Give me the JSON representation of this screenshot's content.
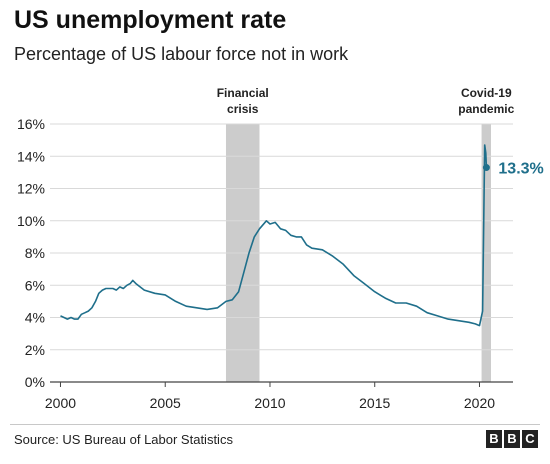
{
  "title": "US unemployment rate",
  "subtitle": "Percentage of US labour force not in work",
  "source": "Source: US Bureau of Labor Statistics",
  "logo": [
    "B",
    "B",
    "C"
  ],
  "chart_data": {
    "type": "line",
    "title": "US unemployment rate",
    "subtitle": "Percentage of US labour force not in work",
    "xlabel": "",
    "ylabel": "",
    "xlim": [
      1999.5,
      2021.6
    ],
    "ylim": [
      0,
      16
    ],
    "y_ticks": [
      0,
      2,
      4,
      6,
      8,
      10,
      12,
      14,
      16
    ],
    "y_tick_labels": [
      "0%",
      "2%",
      "4%",
      "6%",
      "8%",
      "10%",
      "12%",
      "14%",
      "16%"
    ],
    "x_ticks": [
      2000,
      2005,
      2010,
      2015,
      2020
    ],
    "x_tick_labels": [
      "2000",
      "2005",
      "2010",
      "2015",
      "2020"
    ],
    "grid": "horizontal",
    "line_color": "#1f6f8b",
    "band_color": "#cccccc",
    "shaded_periods": [
      {
        "label_lines": [
          "Financial",
          "crisis"
        ],
        "start": 2007.9,
        "end": 2009.5
      },
      {
        "label_lines": [
          "Covid-19",
          "pandemic"
        ],
        "start": 2020.1,
        "end": 2020.55
      }
    ],
    "series": [
      {
        "x": [
          2000.0,
          2000.17,
          2000.33,
          2000.5,
          2000.67,
          2000.83,
          2001.0,
          2001.17,
          2001.33,
          2001.5,
          2001.67,
          2001.83,
          2002.0,
          2002.17,
          2002.33,
          2002.5,
          2002.67,
          2002.83,
          2003.0,
          2003.17,
          2003.33,
          2003.45,
          2003.6,
          2003.8,
          2004.0,
          2004.5,
          2005.0,
          2005.5,
          2006.0,
          2006.5,
          2007.0,
          2007.5,
          2007.9,
          2008.2,
          2008.5,
          2008.75,
          2009.0,
          2009.25,
          2009.5,
          2009.83,
          2010.0,
          2010.25,
          2010.5,
          2010.75,
          2011.0,
          2011.25,
          2011.5,
          2011.75,
          2012.0,
          2012.5,
          2013.0,
          2013.5,
          2014.0,
          2014.5,
          2015.0,
          2015.5,
          2016.0,
          2016.5,
          2017.0,
          2017.5,
          2018.0,
          2018.5,
          2019.0,
          2019.5,
          2019.8,
          2020.0,
          2020.15,
          2020.25,
          2020.3,
          2020.33
        ],
        "y": [
          4.1,
          4.0,
          3.9,
          4.0,
          3.9,
          3.9,
          4.2,
          4.3,
          4.4,
          4.6,
          5.0,
          5.5,
          5.7,
          5.8,
          5.8,
          5.8,
          5.7,
          5.9,
          5.8,
          6.0,
          6.1,
          6.3,
          6.1,
          5.9,
          5.7,
          5.5,
          5.4,
          5.0,
          4.7,
          4.6,
          4.5,
          4.6,
          5.0,
          5.1,
          5.6,
          6.8,
          8.0,
          9.0,
          9.5,
          10.0,
          9.8,
          9.9,
          9.5,
          9.4,
          9.1,
          9.0,
          9.0,
          8.5,
          8.3,
          8.2,
          7.8,
          7.3,
          6.6,
          6.1,
          5.6,
          5.2,
          4.9,
          4.9,
          4.7,
          4.3,
          4.1,
          3.9,
          3.8,
          3.7,
          3.6,
          3.5,
          4.4,
          14.7,
          14.2,
          13.3
        ]
      }
    ],
    "annotations": [
      {
        "text": "13.3%",
        "x": 2020.33,
        "y": 13.3
      }
    ]
  }
}
